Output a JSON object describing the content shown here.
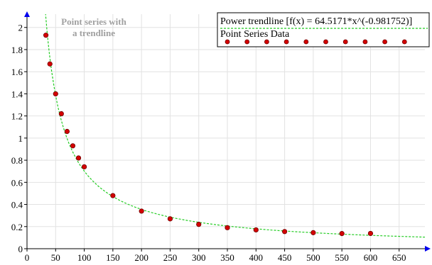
{
  "chart_data": {
    "type": "scatter",
    "title": "",
    "xlabel": "",
    "ylabel": "",
    "xlim": [
      0,
      695
    ],
    "ylim": [
      0,
      2.12
    ],
    "x_ticks": [
      0,
      50,
      100,
      150,
      200,
      250,
      300,
      350,
      400,
      450,
      500,
      550,
      600,
      650
    ],
    "y_ticks": [
      0,
      0.2,
      0.4,
      0.6,
      0.8,
      1,
      1.2,
      1.4,
      1.6,
      1.8,
      2
    ],
    "annotation": [
      "Point series with",
      "a trendline"
    ],
    "legend": {
      "placement": "top-right",
      "entries": [
        "Power trendline [f(x) = 64.5171*x^(-0.981752)]",
        "Point Series Data"
      ]
    },
    "series": [
      {
        "name": "Point Series Data",
        "kind": "points",
        "color": "#d40000",
        "x": [
          33,
          40,
          50,
          60,
          70,
          80,
          90,
          100,
          150,
          200,
          250,
          300,
          350,
          400,
          450,
          500,
          550,
          600
        ],
        "y": [
          1.93,
          1.67,
          1.4,
          1.22,
          1.06,
          0.93,
          0.82,
          0.74,
          0.48,
          0.34,
          0.27,
          0.22,
          0.19,
          0.17,
          0.155,
          0.145,
          0.137,
          0.138
        ]
      },
      {
        "name": "Power trendline [f(x) = 64.5171*x^(-0.981752)]",
        "kind": "trendline",
        "color": "#22cc22",
        "coefficient": 64.5171,
        "exponent": -0.981752
      }
    ]
  }
}
